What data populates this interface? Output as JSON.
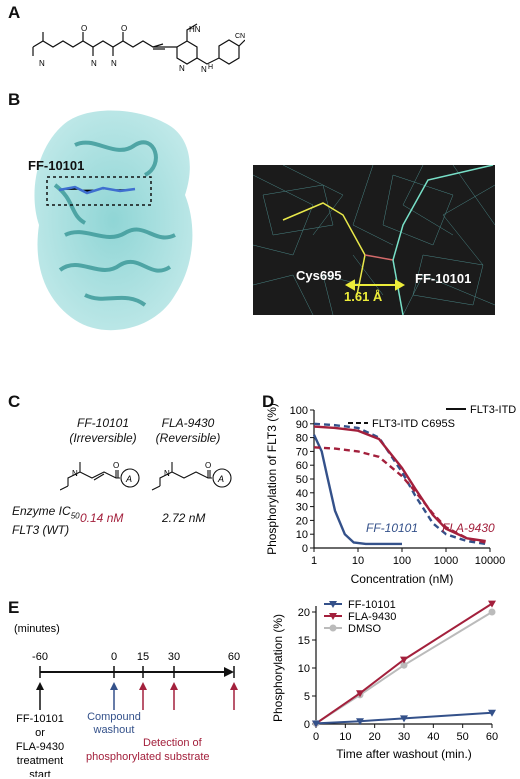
{
  "panels": {
    "A": {
      "letter": "A"
    },
    "B": {
      "letter": "B",
      "compound_label": "FF-10101",
      "cys_label": "Cys695",
      "density_compound_label": "FF-10101",
      "distance_label": "1.61 Å"
    },
    "C": {
      "letter": "C",
      "compound1_name": "FF-10101",
      "compound1_type": "(Irreversible)",
      "compound2_name": "FLA-9430",
      "compound2_type": "(Reversible)",
      "enzyme_label_line1": "Enzyme IC",
      "enzyme_label_sub": "50",
      "enzyme_label_line2": "FLT3 (WT)",
      "ic50_1": "0.14 nM",
      "ic50_2": "2.72 nM",
      "ring_letter": "A"
    },
    "D": {
      "letter": "D",
      "series_label_1": "FF-10101",
      "series_label_2": "FLA-9430"
    },
    "E": {
      "letter": "E",
      "timeline_unit": "(minutes)",
      "ticks": [
        "-60",
        "0",
        "15",
        "30",
        "60"
      ],
      "event1": [
        "FF-10101",
        "or",
        "FLA-9430",
        "treatment",
        "start"
      ],
      "event2": [
        "Compound",
        "washout"
      ],
      "event3": [
        "Detection of",
        "phosphorylated substrate"
      ]
    }
  },
  "colors": {
    "cyan": "#5cbcbc",
    "dark_blue": "#34518a",
    "crimson": "#a3203c",
    "gray": "#bbbbbb",
    "yellow": "#ecec3a"
  },
  "chart_data": [
    {
      "type": "line",
      "panel": "D",
      "x_scale": "log",
      "xlabel": "Concentration (nM)",
      "ylabel": "Phosphorylation of FLT3 (%)",
      "xlim": [
        1,
        10000
      ],
      "ylim": [
        0,
        100
      ],
      "xticks": [
        "1",
        "10",
        "100",
        "1000",
        "10000"
      ],
      "yticks": [
        "0",
        "10",
        "20",
        "30",
        "40",
        "50",
        "60",
        "70",
        "80",
        "90",
        "100"
      ],
      "legend": [
        "FLT3-ITD",
        "FLT3-ITD C695S"
      ],
      "series": [
        {
          "compound": "FF-10101",
          "cell": "FLT3-ITD",
          "style": "solid",
          "color": "#34518a",
          "x": [
            1,
            1.5,
            2,
            3,
            5,
            8,
            15,
            30,
            100
          ],
          "y": [
            82,
            70,
            52,
            27,
            10,
            4,
            3,
            3,
            3
          ]
        },
        {
          "compound": "FF-10101",
          "cell": "FLT3-ITD C695S",
          "style": "dashed",
          "color": "#34518a",
          "x": [
            1,
            3,
            10,
            30,
            100,
            200,
            500,
            1000,
            3000,
            8000
          ],
          "y": [
            90,
            89,
            87,
            80,
            55,
            38,
            18,
            10,
            5,
            3
          ]
        },
        {
          "compound": "FLA-9430",
          "cell": "FLT3-ITD",
          "style": "solid",
          "color": "#a3203c",
          "x": [
            1,
            3,
            10,
            30,
            100,
            200,
            500,
            1000,
            3000,
            8000
          ],
          "y": [
            88,
            87,
            85,
            79,
            58,
            43,
            24,
            14,
            7,
            5
          ]
        },
        {
          "compound": "FLA-9430",
          "cell": "FLT3-ITD C695S",
          "style": "dashed",
          "color": "#a3203c",
          "x": [
            1,
            3,
            10,
            30,
            100,
            200,
            500,
            1000,
            3000,
            8000
          ],
          "y": [
            73,
            72,
            70,
            66,
            52,
            41,
            25,
            15,
            7,
            4
          ]
        }
      ]
    },
    {
      "type": "line",
      "panel": "E",
      "xlabel": "Time after washout (min.)",
      "ylabel": "Phosphorylation (%)",
      "xlim": [
        0,
        60
      ],
      "ylim": [
        0,
        20
      ],
      "xticks": [
        "0",
        "10",
        "20",
        "30",
        "40",
        "50",
        "60"
      ],
      "yticks": [
        "0",
        "5",
        "10",
        "15",
        "20"
      ],
      "legend_position": "top-left",
      "series": [
        {
          "name": "FF-10101",
          "color": "#34518a",
          "marker": "triangle-down",
          "x": [
            0,
            15,
            30,
            60
          ],
          "y": [
            0.1,
            0.5,
            1.0,
            2.0
          ]
        },
        {
          "name": "FLA-9430",
          "color": "#a3203c",
          "marker": "triangle-down",
          "x": [
            0,
            15,
            30,
            60
          ],
          "y": [
            0.1,
            5.5,
            11.5,
            21.5
          ]
        },
        {
          "name": "DMSO",
          "color": "#bbbbbb",
          "marker": "circle",
          "x": [
            0,
            15,
            30,
            60
          ],
          "y": [
            0.1,
            5.2,
            10.5,
            20.0
          ]
        }
      ]
    }
  ]
}
